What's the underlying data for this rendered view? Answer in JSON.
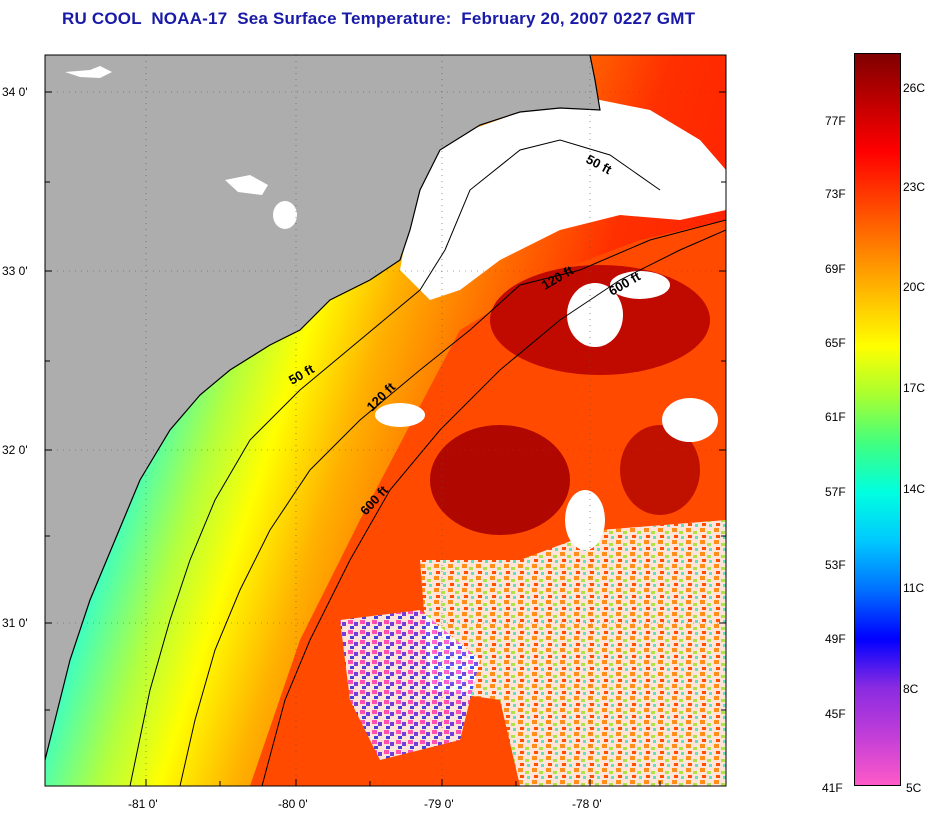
{
  "title": "RU COOL  NOAA-17  Sea Surface Temperature:  February 20, 2007 0227 GMT",
  "map": {
    "lat_labels": [
      "34 0'",
      "33 0'",
      "32 0'",
      "31 0'"
    ],
    "lon_labels": [
      "-81 0'",
      "-80 0'",
      "-79 0'",
      "-78 0'"
    ],
    "contour_labels": [
      "50 ft",
      "120 ft",
      "600 ft",
      "50 ft",
      "120 ft",
      "600 ft"
    ],
    "colors": {
      "land": "#adadad",
      "cloud": "#ffffff",
      "coast": "#000000"
    }
  },
  "colorbar": {
    "fahrenheit_labels": [
      "77F",
      "73F",
      "69F",
      "65F",
      "61F",
      "57F",
      "53F",
      "49F",
      "45F",
      "41F"
    ],
    "celsius_labels": [
      "26C",
      "23C",
      "20C",
      "17C",
      "14C",
      "11C",
      "8C",
      "5C"
    ],
    "gradient": [
      "#ff5ac8",
      "#c23ed8",
      "#8a2be2",
      "#0000ff",
      "#0070ff",
      "#00c8ff",
      "#00ffe0",
      "#40ff80",
      "#a8ff30",
      "#ffff00",
      "#ffc000",
      "#ff8000",
      "#ff4000",
      "#ff0000",
      "#c00000",
      "#800000"
    ]
  }
}
